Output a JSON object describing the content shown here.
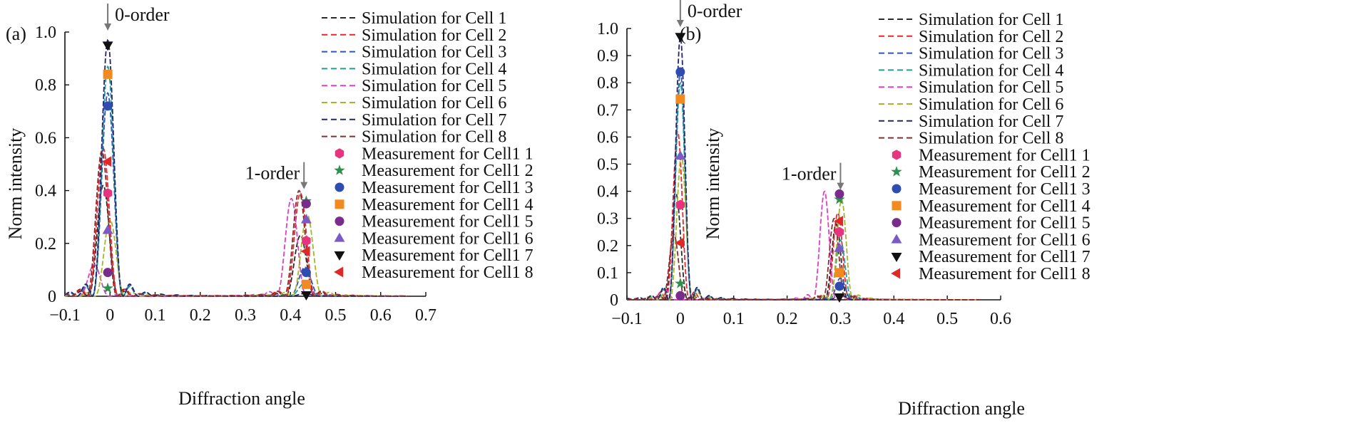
{
  "colors": {
    "cell1": "#2b2b2b",
    "cell2": "#e8262b",
    "cell3": "#2f56b8",
    "cell4": "#1f9e96",
    "cell5": "#e040c8",
    "cell6": "#a7b52a",
    "cell7": "#25256e",
    "cell8": "#8b2c2c",
    "m1": "#e8337f",
    "m2": "#2f8f4c",
    "m3": "#2f4db0",
    "m4": "#f28a1f",
    "m5": "#7a2c8c",
    "m6": "#7b5ac6",
    "m7": "#111111",
    "m8": "#e02828"
  },
  "legend": {
    "simulation": [
      "Simulation for Cell 1",
      "Simulation for Cell 2",
      "Simulation for Cell 3",
      "Simulation for Cell 4",
      "Simulation for Cell 5",
      "Simulation for Cell 6",
      "Simulation for Cell 7",
      "Simulation for Cell 8"
    ],
    "measurement": [
      "Measurement for Cell1 1",
      "Measurement for Cell1 2",
      "Measurement for Cell1 3",
      "Measurement for Cell1 4",
      "Measurement for Cell1 5",
      "Measurement for Cell1 6",
      "Measurement for Cell1 7",
      "Measurement for Cell1 8"
    ],
    "markers": [
      "hexagon",
      "star",
      "circle",
      "square",
      "circle",
      "triangle-up",
      "triangle-down",
      "triangle-left"
    ]
  },
  "chart_data": [
    {
      "type": "line",
      "panel_label": "(a)",
      "xlabel": "Diffraction angle",
      "ylabel": "Norm intensity",
      "xlim": [
        -0.1,
        0.7
      ],
      "ylim": [
        0,
        1.0
      ],
      "xticks": [
        -0.1,
        0,
        0.1,
        0.2,
        0.3,
        0.4,
        0.5,
        0.6,
        0.7
      ],
      "xtick_labels": [
        "−0.1",
        "0",
        "0.1",
        "0.2",
        "0.3",
        "0.4",
        "0.5",
        "0.6",
        "0.7"
      ],
      "yticks": [
        0,
        0.2,
        0.4,
        0.6,
        0.8,
        1.0
      ],
      "ytick_labels": [
        "0",
        "0.2",
        "0.4",
        "0.6",
        "0.8",
        "1.0"
      ],
      "annotations": [
        {
          "text": "0-order",
          "x": -0.005,
          "y": 1.0
        },
        {
          "text": "1-order",
          "x": 0.43,
          "y": 0.4
        }
      ],
      "period": 0.437,
      "width": 0.034,
      "series": [
        {
          "name": "Simulation for Cell 1",
          "p0": 0.42,
          "p1": 0.23,
          "x0": -0.015
        },
        {
          "name": "Simulation for Cell 2",
          "p0": 0.56,
          "p1": 0.39,
          "x0": -0.015
        },
        {
          "name": "Simulation for Cell 3",
          "p0": 0.77,
          "p1": 0.11,
          "x0": -0.005
        },
        {
          "name": "Simulation for Cell 4",
          "p0": 0.87,
          "p1": 0.05,
          "x0": -0.005
        },
        {
          "name": "Simulation for Cell 5",
          "p0": 0.12,
          "p1": 0.37,
          "x0": -0.035
        },
        {
          "name": "Simulation for Cell 6",
          "p0": 0.29,
          "p1": 0.31,
          "x0": 0.0
        },
        {
          "name": "Simulation for Cell 7",
          "p0": 0.97,
          "p1": 0.01,
          "x0": -0.005
        },
        {
          "name": "Simulation for Cell 8",
          "p0": 0.55,
          "p1": 0.4,
          "x0": -0.018
        }
      ],
      "measurements": [
        {
          "name": "Measurement for Cell1 1",
          "points": [
            [
              -0.005,
              0.39
            ],
            [
              0.435,
              0.21
            ]
          ]
        },
        {
          "name": "Measurement for Cell1 2",
          "points": [
            [
              -0.005,
              0.03
            ],
            [
              0.435,
              0.36
            ]
          ]
        },
        {
          "name": "Measurement for Cell1 3",
          "points": [
            [
              -0.005,
              0.72
            ],
            [
              0.435,
              0.09
            ]
          ]
        },
        {
          "name": "Measurement for Cell1 4",
          "points": [
            [
              -0.005,
              0.84
            ],
            [
              0.435,
              0.045
            ]
          ]
        },
        {
          "name": "Measurement for Cell1 5",
          "points": [
            [
              -0.005,
              0.09
            ],
            [
              0.435,
              0.35
            ]
          ]
        },
        {
          "name": "Measurement for Cell1 6",
          "points": [
            [
              -0.005,
              0.25
            ],
            [
              0.435,
              0.29
            ]
          ]
        },
        {
          "name": "Measurement for Cell1 7",
          "points": [
            [
              -0.005,
              0.95
            ],
            [
              0.435,
              0.005
            ]
          ]
        },
        {
          "name": "Measurement for Cell1 8",
          "points": [
            [
              -0.005,
              0.51
            ],
            [
              0.435,
              0.17
            ]
          ]
        }
      ]
    },
    {
      "type": "line",
      "panel_label": "(b)",
      "xlabel": "Diffraction angle",
      "ylabel": "Norm intensity",
      "xlim": [
        -0.1,
        0.6
      ],
      "ylim": [
        0,
        1.0
      ],
      "xticks": [
        -0.1,
        0,
        0.1,
        0.2,
        0.3,
        0.4,
        0.5,
        0.6
      ],
      "xtick_labels": [
        "−0.1",
        "0",
        "0.1",
        "0.2",
        "0.3",
        "0.4",
        "0.5",
        "0.6"
      ],
      "yticks": [
        0,
        0.1,
        0.2,
        0.3,
        0.4,
        0.5,
        0.6,
        0.7,
        0.8,
        0.9,
        1.0
      ],
      "ytick_labels": [
        "0",
        "0.1",
        "0.2",
        "0.3",
        "0.4",
        "0.5",
        "0.6",
        "0.7",
        "0.8",
        "0.9",
        "1.0"
      ],
      "annotations": [
        {
          "text": "0-order",
          "x": 0.0,
          "y": 1.0
        },
        {
          "text": "1-order",
          "x": 0.3,
          "y": 0.4
        }
      ],
      "period": 0.3,
      "width": 0.022,
      "series": [
        {
          "name": "Simulation for Cell 1",
          "p0": 0.39,
          "p1": 0.28,
          "x0": -0.008
        },
        {
          "name": "Simulation for Cell 2",
          "p0": 0.62,
          "p1": 0.32,
          "x0": -0.005
        },
        {
          "name": "Simulation for Cell 3",
          "p0": 0.84,
          "p1": 0.08,
          "x0": 0.0
        },
        {
          "name": "Simulation for Cell 4",
          "p0": 0.8,
          "p1": 0.22,
          "x0": 0.0
        },
        {
          "name": "Simulation for Cell 5",
          "p0": 0.04,
          "p1": 0.4,
          "x0": -0.03
        },
        {
          "name": "Simulation for Cell 6",
          "p0": 0.53,
          "p1": 0.37,
          "x0": 0.002
        },
        {
          "name": "Simulation for Cell 7",
          "p0": 0.97,
          "p1": 0.02,
          "x0": 0.0
        },
        {
          "name": "Simulation for Cell 8",
          "p0": 0.24,
          "p1": 0.3,
          "x0": -0.012
        }
      ],
      "measurements": [
        {
          "name": "Measurement for Cell1 1",
          "points": [
            [
              0.0,
              0.35
            ],
            [
              0.298,
              0.25
            ]
          ]
        },
        {
          "name": "Measurement for Cell1 2",
          "points": [
            [
              0.0,
              0.06
            ],
            [
              0.298,
              0.37
            ]
          ]
        },
        {
          "name": "Measurement for Cell1 3",
          "points": [
            [
              0.0,
              0.84
            ],
            [
              0.298,
              0.05
            ]
          ]
        },
        {
          "name": "Measurement for Cell1 4",
          "points": [
            [
              0.0,
              0.74
            ],
            [
              0.298,
              0.1
            ]
          ]
        },
        {
          "name": "Measurement for Cell1 5",
          "points": [
            [
              0.0,
              0.015
            ],
            [
              0.298,
              0.39
            ]
          ]
        },
        {
          "name": "Measurement for Cell1 6",
          "points": [
            [
              0.0,
              0.53
            ],
            [
              0.298,
              0.19
            ]
          ]
        },
        {
          "name": "Measurement for Cell1 7",
          "points": [
            [
              0.0,
              0.97
            ],
            [
              0.298,
              0.01
            ]
          ]
        },
        {
          "name": "Measurement for Cell1 8",
          "points": [
            [
              0.0,
              0.21
            ],
            [
              0.298,
              0.29
            ]
          ]
        }
      ]
    }
  ]
}
